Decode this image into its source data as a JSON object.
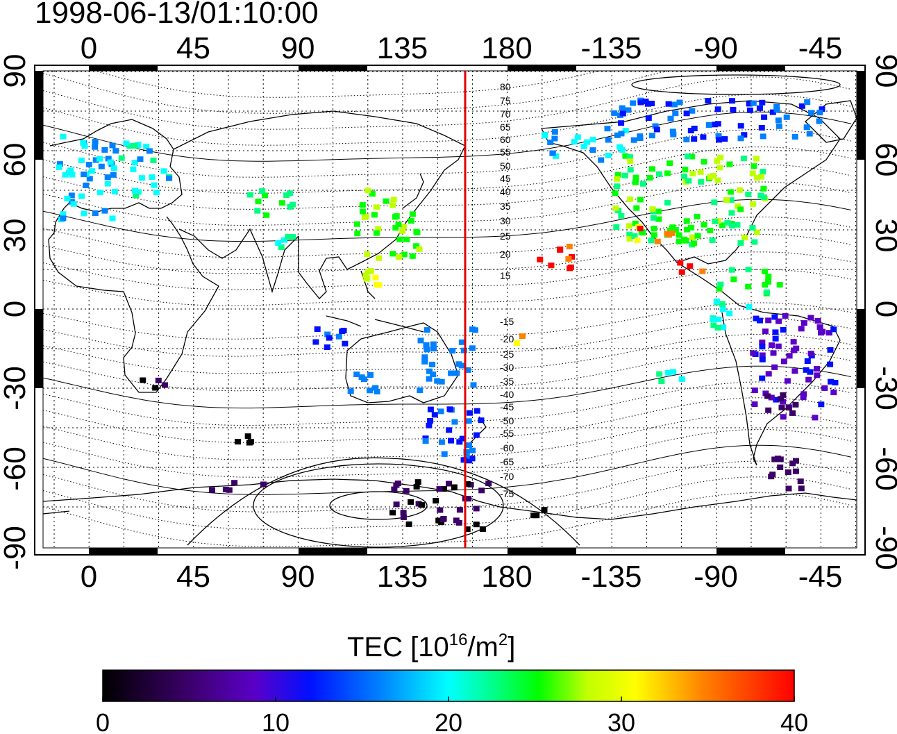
{
  "title": "1998-06-13/01:10:00",
  "map": {
    "x_ticks": [
      "0",
      "45",
      "90",
      "135",
      "180",
      "-135",
      "-90",
      "-45"
    ],
    "y_ticks": [
      "90",
      "60",
      "30",
      "0",
      "-30",
      "-60",
      "-90"
    ],
    "dip_labels_north": [
      "80",
      "75",
      "70",
      "65",
      "60",
      "55",
      "50",
      "45",
      "40",
      "35",
      "30",
      "25",
      "20",
      "15"
    ],
    "dip_labels_south": [
      "-15",
      "-20",
      "-25",
      "-30",
      "-35",
      "-40",
      "-45",
      "-50",
      "-55",
      "-60",
      "-65",
      "-70",
      "-75"
    ],
    "marker_line_color": "#e00000"
  },
  "colorbar": {
    "label": "TEC  [10",
    "label_sup": "16",
    "label_mid": "/m",
    "label_sup2": "2",
    "label_end": "]",
    "ticks": [
      "0",
      "10",
      "20",
      "30",
      "40"
    ],
    "range": [
      0,
      40
    ],
    "colormap": [
      "#000000",
      "#3a0066",
      "#5a00c8",
      "#0010ff",
      "#0080ff",
      "#00ffff",
      "#00ff80",
      "#00ff00",
      "#c0ff00",
      "#ffff00",
      "#ff8000",
      "#ff0000"
    ]
  }
}
